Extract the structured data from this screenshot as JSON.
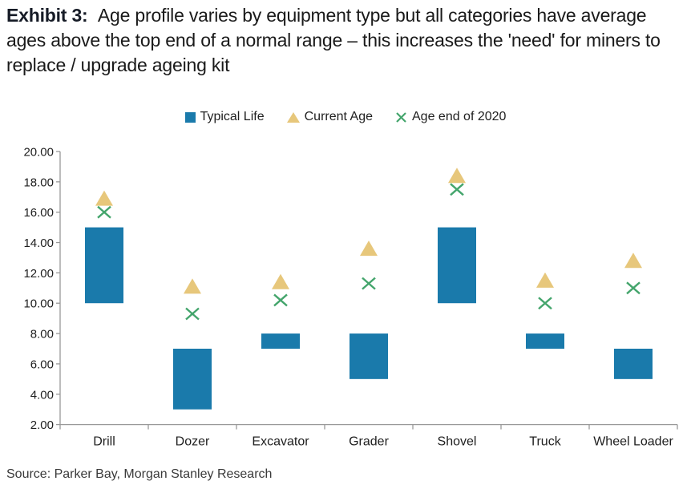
{
  "title": {
    "prefix": "Exhibit 3:",
    "text": "Age profile varies by equipment type but all categories have average ages above the top end of a normal range – this increases the 'need' for miners to replace / upgrade ageing kit"
  },
  "chart_data": {
    "type": "bar",
    "subtype": "floating-range-bars-with-scatter-markers",
    "categories": [
      "Drill",
      "Dozer",
      "Excavator",
      "Grader",
      "Shovel",
      "Truck",
      "Wheel Loader"
    ],
    "series": [
      {
        "name": "Typical Life",
        "type": "range-bar",
        "marker": "square",
        "color": "#1a7aab",
        "low": [
          10,
          3,
          7,
          5,
          10,
          7,
          5
        ],
        "high": [
          15,
          7,
          8,
          8,
          15,
          8,
          7
        ]
      },
      {
        "name": "Current Age",
        "type": "scatter",
        "marker": "triangle",
        "color": "#e7c77b",
        "values": [
          16.9,
          11.1,
          11.4,
          13.6,
          18.4,
          11.5,
          12.8
        ]
      },
      {
        "name": "Age end of 2020",
        "type": "scatter",
        "marker": "x",
        "color": "#44a56c",
        "values": [
          16.0,
          9.3,
          10.2,
          11.3,
          17.5,
          10.0,
          11.0
        ]
      }
    ],
    "ylim": [
      2,
      20
    ],
    "ytick_step": 2,
    "ytick_labels": [
      "2.00",
      "4.00",
      "6.00",
      "8.00",
      "10.00",
      "12.00",
      "14.00",
      "16.00",
      "18.00",
      "20.00"
    ],
    "grid": false,
    "legend_position": "top",
    "axis_color": "#999999",
    "tick_label_color": "#1f1f1f"
  },
  "source": "Source: Parker Bay, Morgan Stanley Research"
}
